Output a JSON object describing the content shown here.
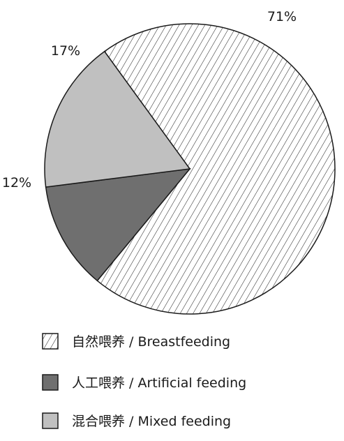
{
  "chart_data": {
    "type": "pie",
    "slices": [
      {
        "label": "自然喂养 / Breastfeeding",
        "value": 71,
        "value_label": "71%",
        "fill": "hatch",
        "color": "#ffffff"
      },
      {
        "label": "人工喂养 / Artificial feeding",
        "value": 12,
        "value_label": "12%",
        "fill": "solid",
        "color": "#6f6f6f"
      },
      {
        "label": "混合喂养 / Mixed feeding",
        "value": 17,
        "value_label": "17%",
        "fill": "solid",
        "color": "#c0c0c0"
      }
    ],
    "legend_placement": "bottom-left",
    "outline_color": "#1a1a1a"
  }
}
